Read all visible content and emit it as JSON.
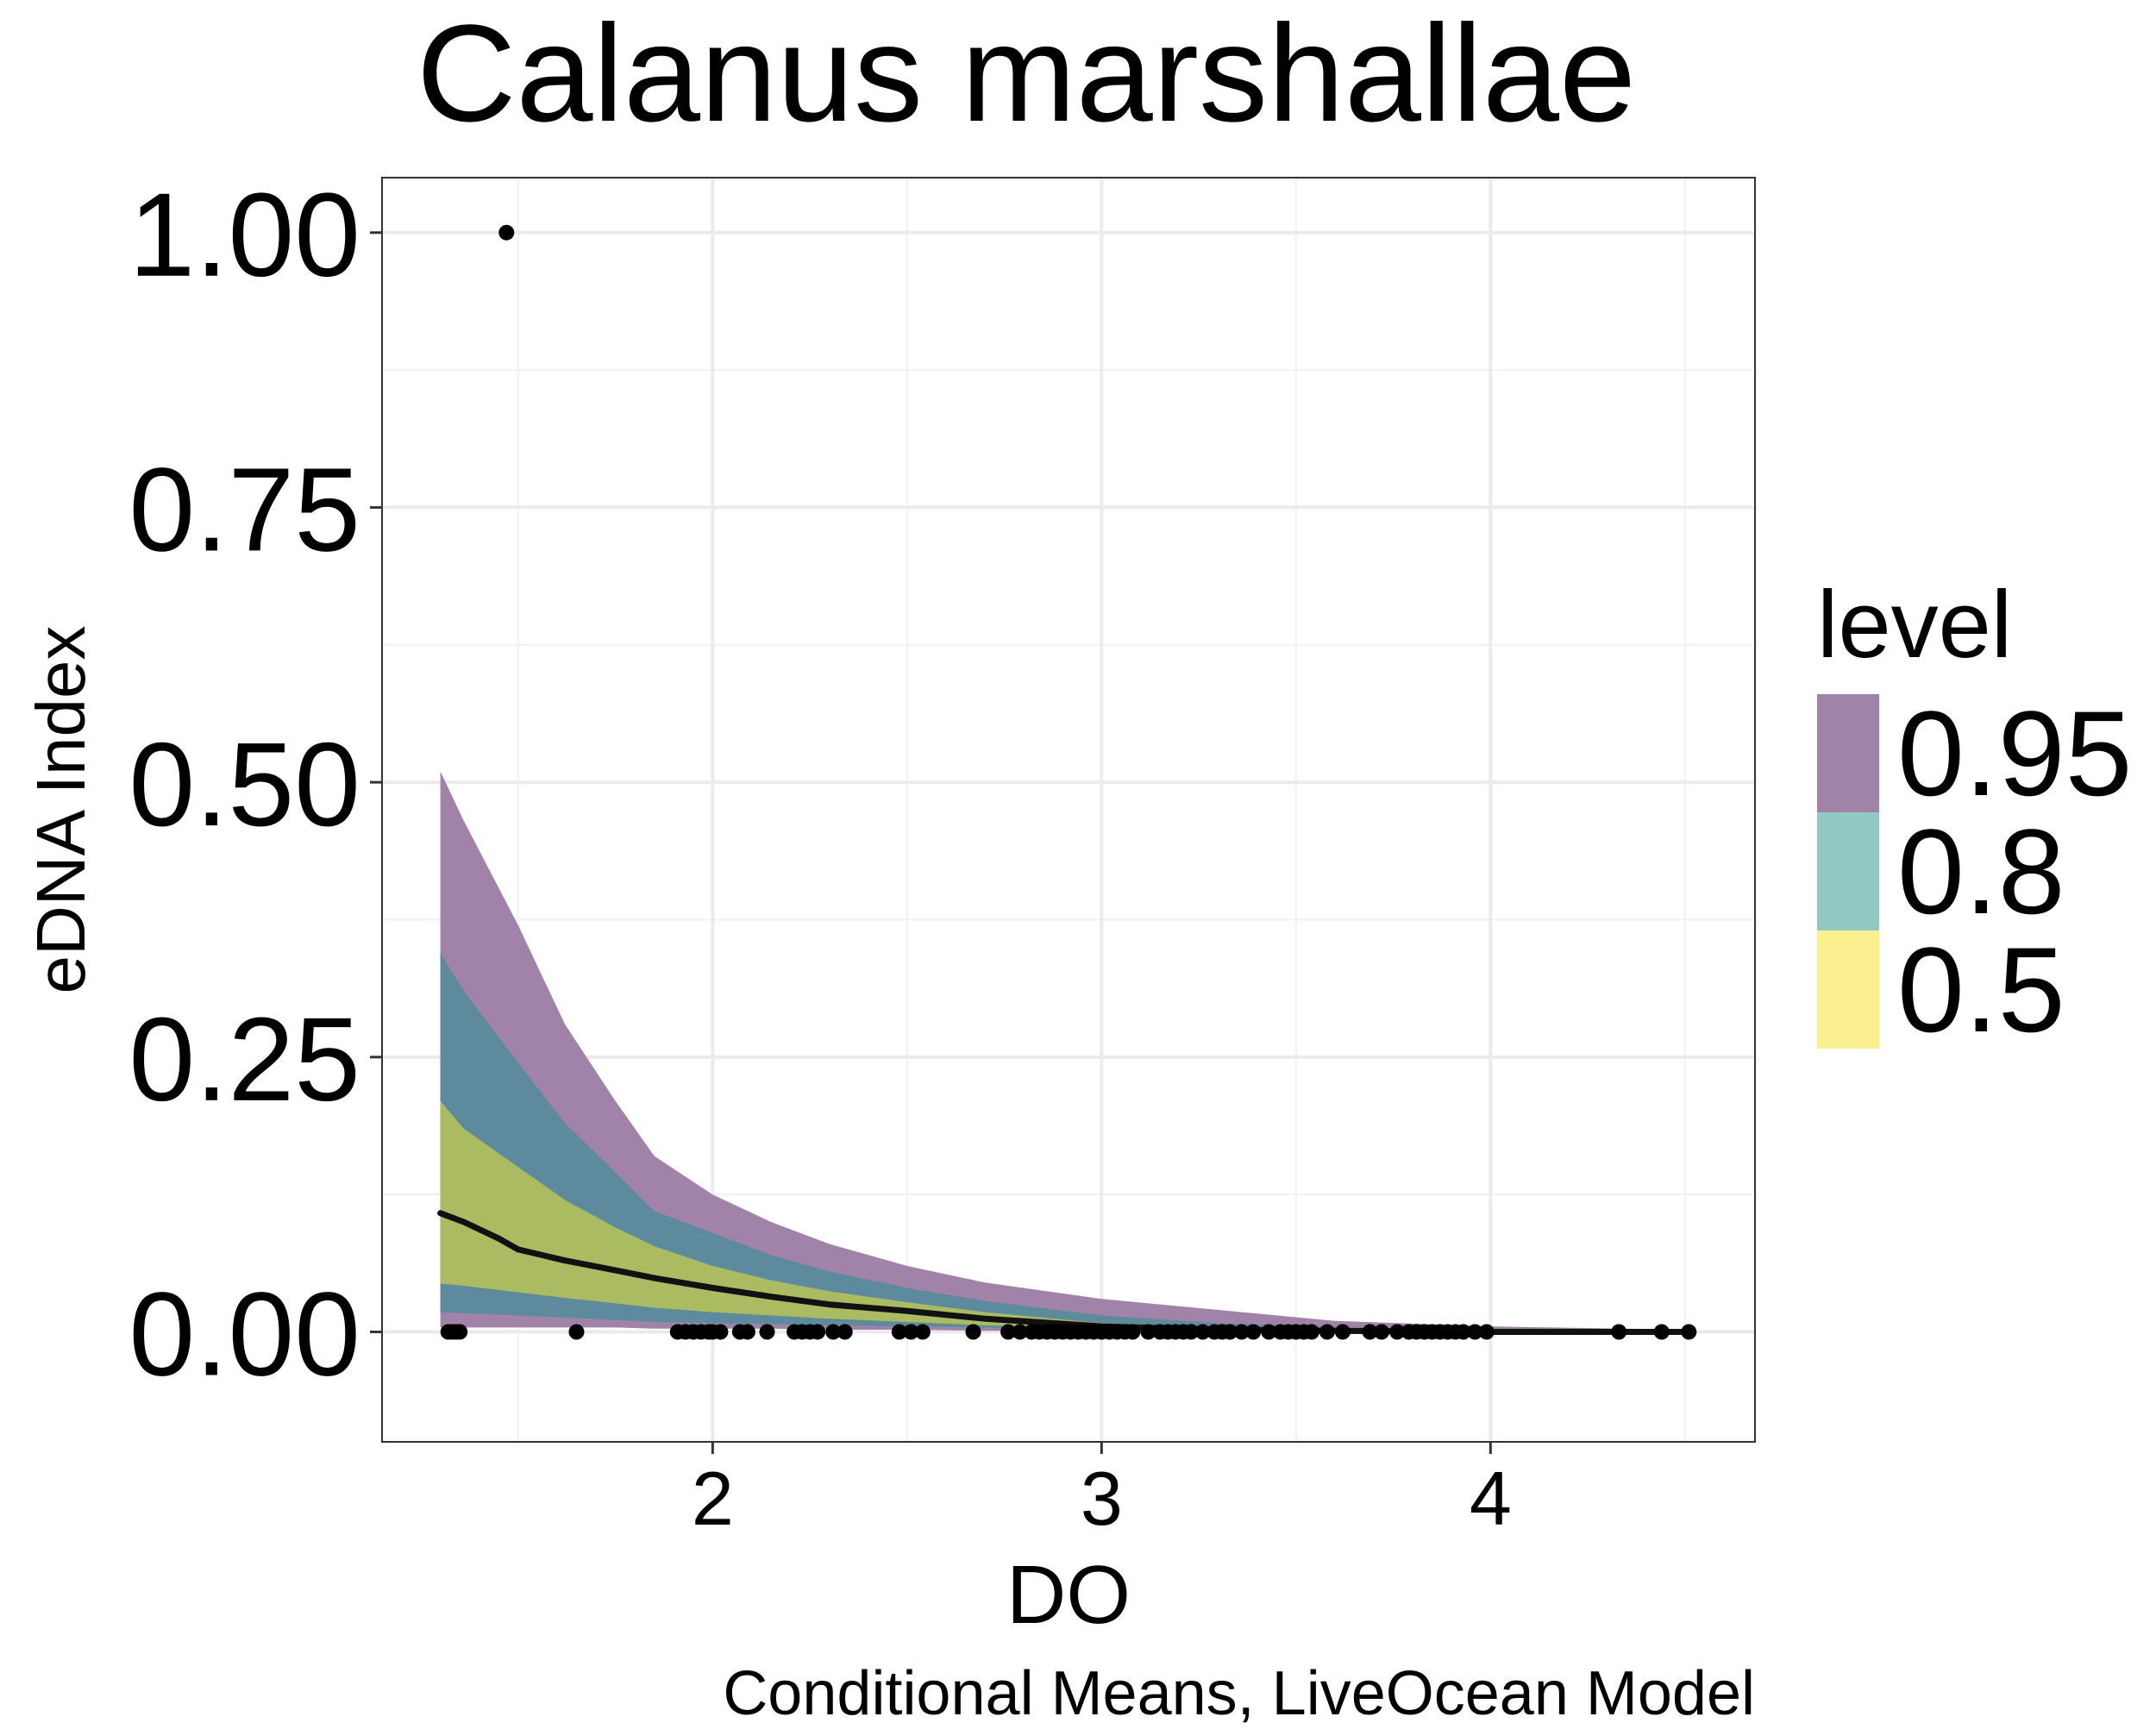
{
  "chart_data": {
    "type": "area",
    "title": "Calanus marshallae",
    "xlabel": "DO",
    "ylabel": "eDNA Index",
    "caption": "Conditional Means, LiveOcean Model",
    "xlim": [
      1.15,
      4.68
    ],
    "ylim": [
      -0.1,
      1.05
    ],
    "x_ticks": [
      {
        "value": 2,
        "label": "2"
      },
      {
        "value": 3,
        "label": "3"
      },
      {
        "value": 4,
        "label": "4"
      }
    ],
    "y_ticks": [
      {
        "value": 0,
        "label": "0.00"
      },
      {
        "value": 0.25,
        "label": "0.25"
      },
      {
        "value": 0.5,
        "label": "0.50"
      },
      {
        "value": 0.75,
        "label": "0.75"
      },
      {
        "value": 1,
        "label": "1.00"
      }
    ],
    "grid": true,
    "legend": {
      "title": "level",
      "position": "right",
      "items": [
        {
          "label": "0.95",
          "color": "#A182A8"
        },
        {
          "label": "0.8",
          "color": "#93C9C3"
        },
        {
          "label": "0.5",
          "color": "#FBF08F"
        }
      ]
    },
    "ribbons": [
      {
        "level": "0.95",
        "fill": "#A182A8",
        "x": [
          1.3,
          1.36,
          1.5,
          1.62,
          1.75,
          1.85,
          2.0,
          2.15,
          2.3,
          2.5,
          2.7,
          3.0,
          3.3,
          3.6,
          4.0,
          4.5
        ],
        "upper": [
          0.51,
          0.465,
          0.37,
          0.28,
          0.21,
          0.16,
          0.125,
          0.1,
          0.08,
          0.06,
          0.045,
          0.03,
          0.02,
          0.01,
          0.005,
          0.002
        ],
        "lower": [
          0.004,
          0.004,
          0.004,
          0.004,
          0.004,
          0.003,
          0.003,
          0.003,
          0.002,
          0.002,
          0.001,
          0.001,
          0.0,
          0.0,
          0.0,
          0.0
        ]
      },
      {
        "level": "0.8",
        "fill": "#5E8A9E",
        "x": [
          1.3,
          1.36,
          1.5,
          1.62,
          1.75,
          1.85,
          2.0,
          2.15,
          2.3,
          2.5,
          2.7,
          3.0,
          3.3,
          3.6,
          4.0,
          4.5
        ],
        "upper": [
          0.345,
          0.31,
          0.245,
          0.19,
          0.145,
          0.11,
          0.09,
          0.07,
          0.055,
          0.04,
          0.028,
          0.015,
          0.008,
          0.004,
          0.002,
          0.001
        ],
        "lower": [
          0.018,
          0.017,
          0.015,
          0.013,
          0.011,
          0.009,
          0.008,
          0.007,
          0.006,
          0.005,
          0.004,
          0.002,
          0.001,
          0.0,
          0.0,
          0.0
        ]
      },
      {
        "level": "0.5",
        "fill": "#ABBB62",
        "x": [
          1.3,
          1.36,
          1.5,
          1.62,
          1.75,
          1.85,
          2.0,
          2.15,
          2.3,
          2.5,
          2.7,
          3.0,
          3.3,
          3.6,
          4.0,
          4.5
        ],
        "upper": [
          0.21,
          0.185,
          0.15,
          0.12,
          0.095,
          0.078,
          0.06,
          0.047,
          0.037,
          0.027,
          0.018,
          0.008,
          0.004,
          0.002,
          0.001,
          0.0005
        ],
        "lower": [
          0.044,
          0.042,
          0.036,
          0.031,
          0.026,
          0.022,
          0.018,
          0.015,
          0.012,
          0.009,
          0.006,
          0.003,
          0.001,
          0.0005,
          0.0,
          0.0
        ]
      }
    ],
    "mean_line": {
      "color": "#111111",
      "x": [
        1.3,
        1.36,
        1.45,
        1.5,
        1.62,
        1.75,
        1.85,
        2.0,
        2.15,
        2.3,
        2.5,
        2.7,
        3.0,
        3.3,
        3.6,
        4.0,
        4.5
      ],
      "y": [
        0.108,
        0.1,
        0.085,
        0.075,
        0.065,
        0.056,
        0.049,
        0.04,
        0.032,
        0.025,
        0.019,
        0.012,
        0.005,
        0.002,
        0.001,
        0.0,
        0.0
      ]
    },
    "points": {
      "color": "#000000",
      "x": [
        1.32,
        1.33,
        1.34,
        1.35,
        1.47,
        1.65,
        1.91,
        1.93,
        1.95,
        1.97,
        1.99,
        2.0,
        2.02,
        2.07,
        2.09,
        2.14,
        2.21,
        2.23,
        2.25,
        2.27,
        2.31,
        2.34,
        2.48,
        2.51,
        2.54,
        2.67,
        2.76,
        2.79,
        2.82,
        2.84,
        2.86,
        2.88,
        2.9,
        2.92,
        2.94,
        2.96,
        2.98,
        3.0,
        3.02,
        3.04,
        3.06,
        3.08,
        3.12,
        3.15,
        3.17,
        3.19,
        3.21,
        3.23,
        3.26,
        3.29,
        3.31,
        3.33,
        3.36,
        3.39,
        3.43,
        3.46,
        3.48,
        3.5,
        3.52,
        3.54,
        3.58,
        3.62,
        3.69,
        3.72,
        3.76,
        3.79,
        3.81,
        3.83,
        3.85,
        3.87,
        3.89,
        3.91,
        3.93,
        3.96,
        3.99,
        4.33,
        4.44,
        4.51
      ],
      "y": [
        0,
        0,
        0,
        0,
        1.0,
        0,
        0,
        0,
        0,
        0,
        0,
        0,
        0,
        0,
        0,
        0,
        0,
        0,
        0,
        0,
        0,
        0,
        0,
        0,
        0,
        0,
        0,
        0,
        0,
        0,
        0,
        0,
        0,
        0,
        0,
        0,
        0,
        0,
        0,
        0,
        0,
        0,
        0,
        0,
        0,
        0,
        0,
        0,
        0,
        0,
        0,
        0,
        0,
        0,
        0,
        0,
        0,
        0,
        0,
        0,
        0,
        0,
        0,
        0,
        0,
        0,
        0,
        0,
        0,
        0,
        0,
        0,
        0,
        0,
        0,
        0,
        0,
        0
      ]
    }
  }
}
